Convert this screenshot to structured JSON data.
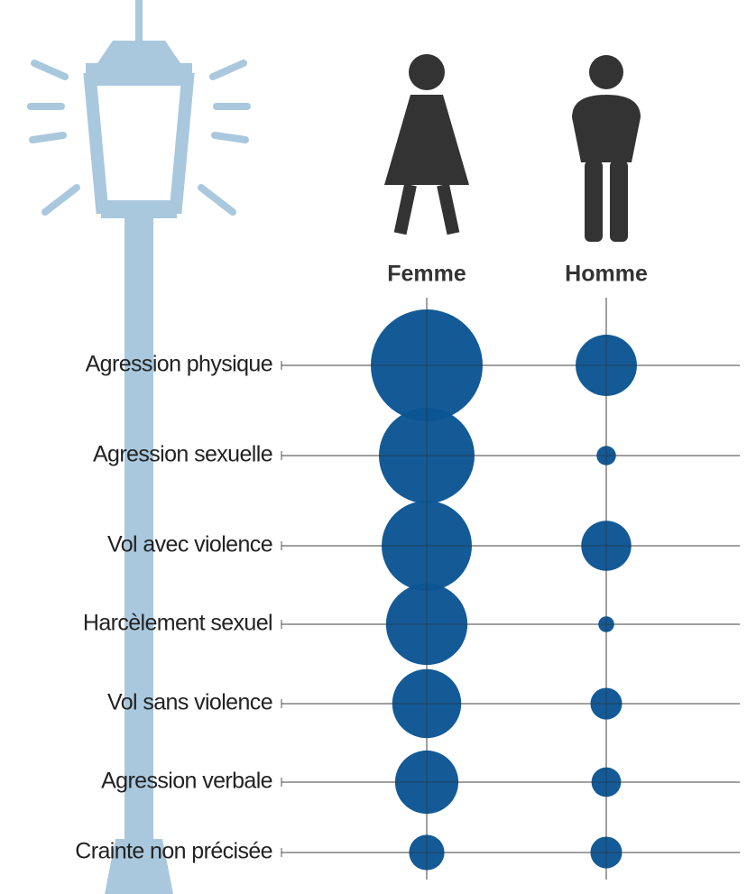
{
  "chart_data": {
    "type": "bubble",
    "categories": [
      "Agression physique",
      "Agression sexuelle",
      "Vol avec violence",
      "Harcèlement sexuel",
      "Vol sans violence",
      "Agression verbale",
      "Crainte non précisée"
    ],
    "series": [
      {
        "name": "Femme",
        "color": "#0b5593",
        "values": [
          100,
          73,
          65,
          53,
          38,
          32,
          10
        ]
      },
      {
        "name": "Homme",
        "color": "#0b5593",
        "values": [
          30,
          3,
          20,
          2,
          8,
          7,
          8
        ]
      }
    ]
  }
}
